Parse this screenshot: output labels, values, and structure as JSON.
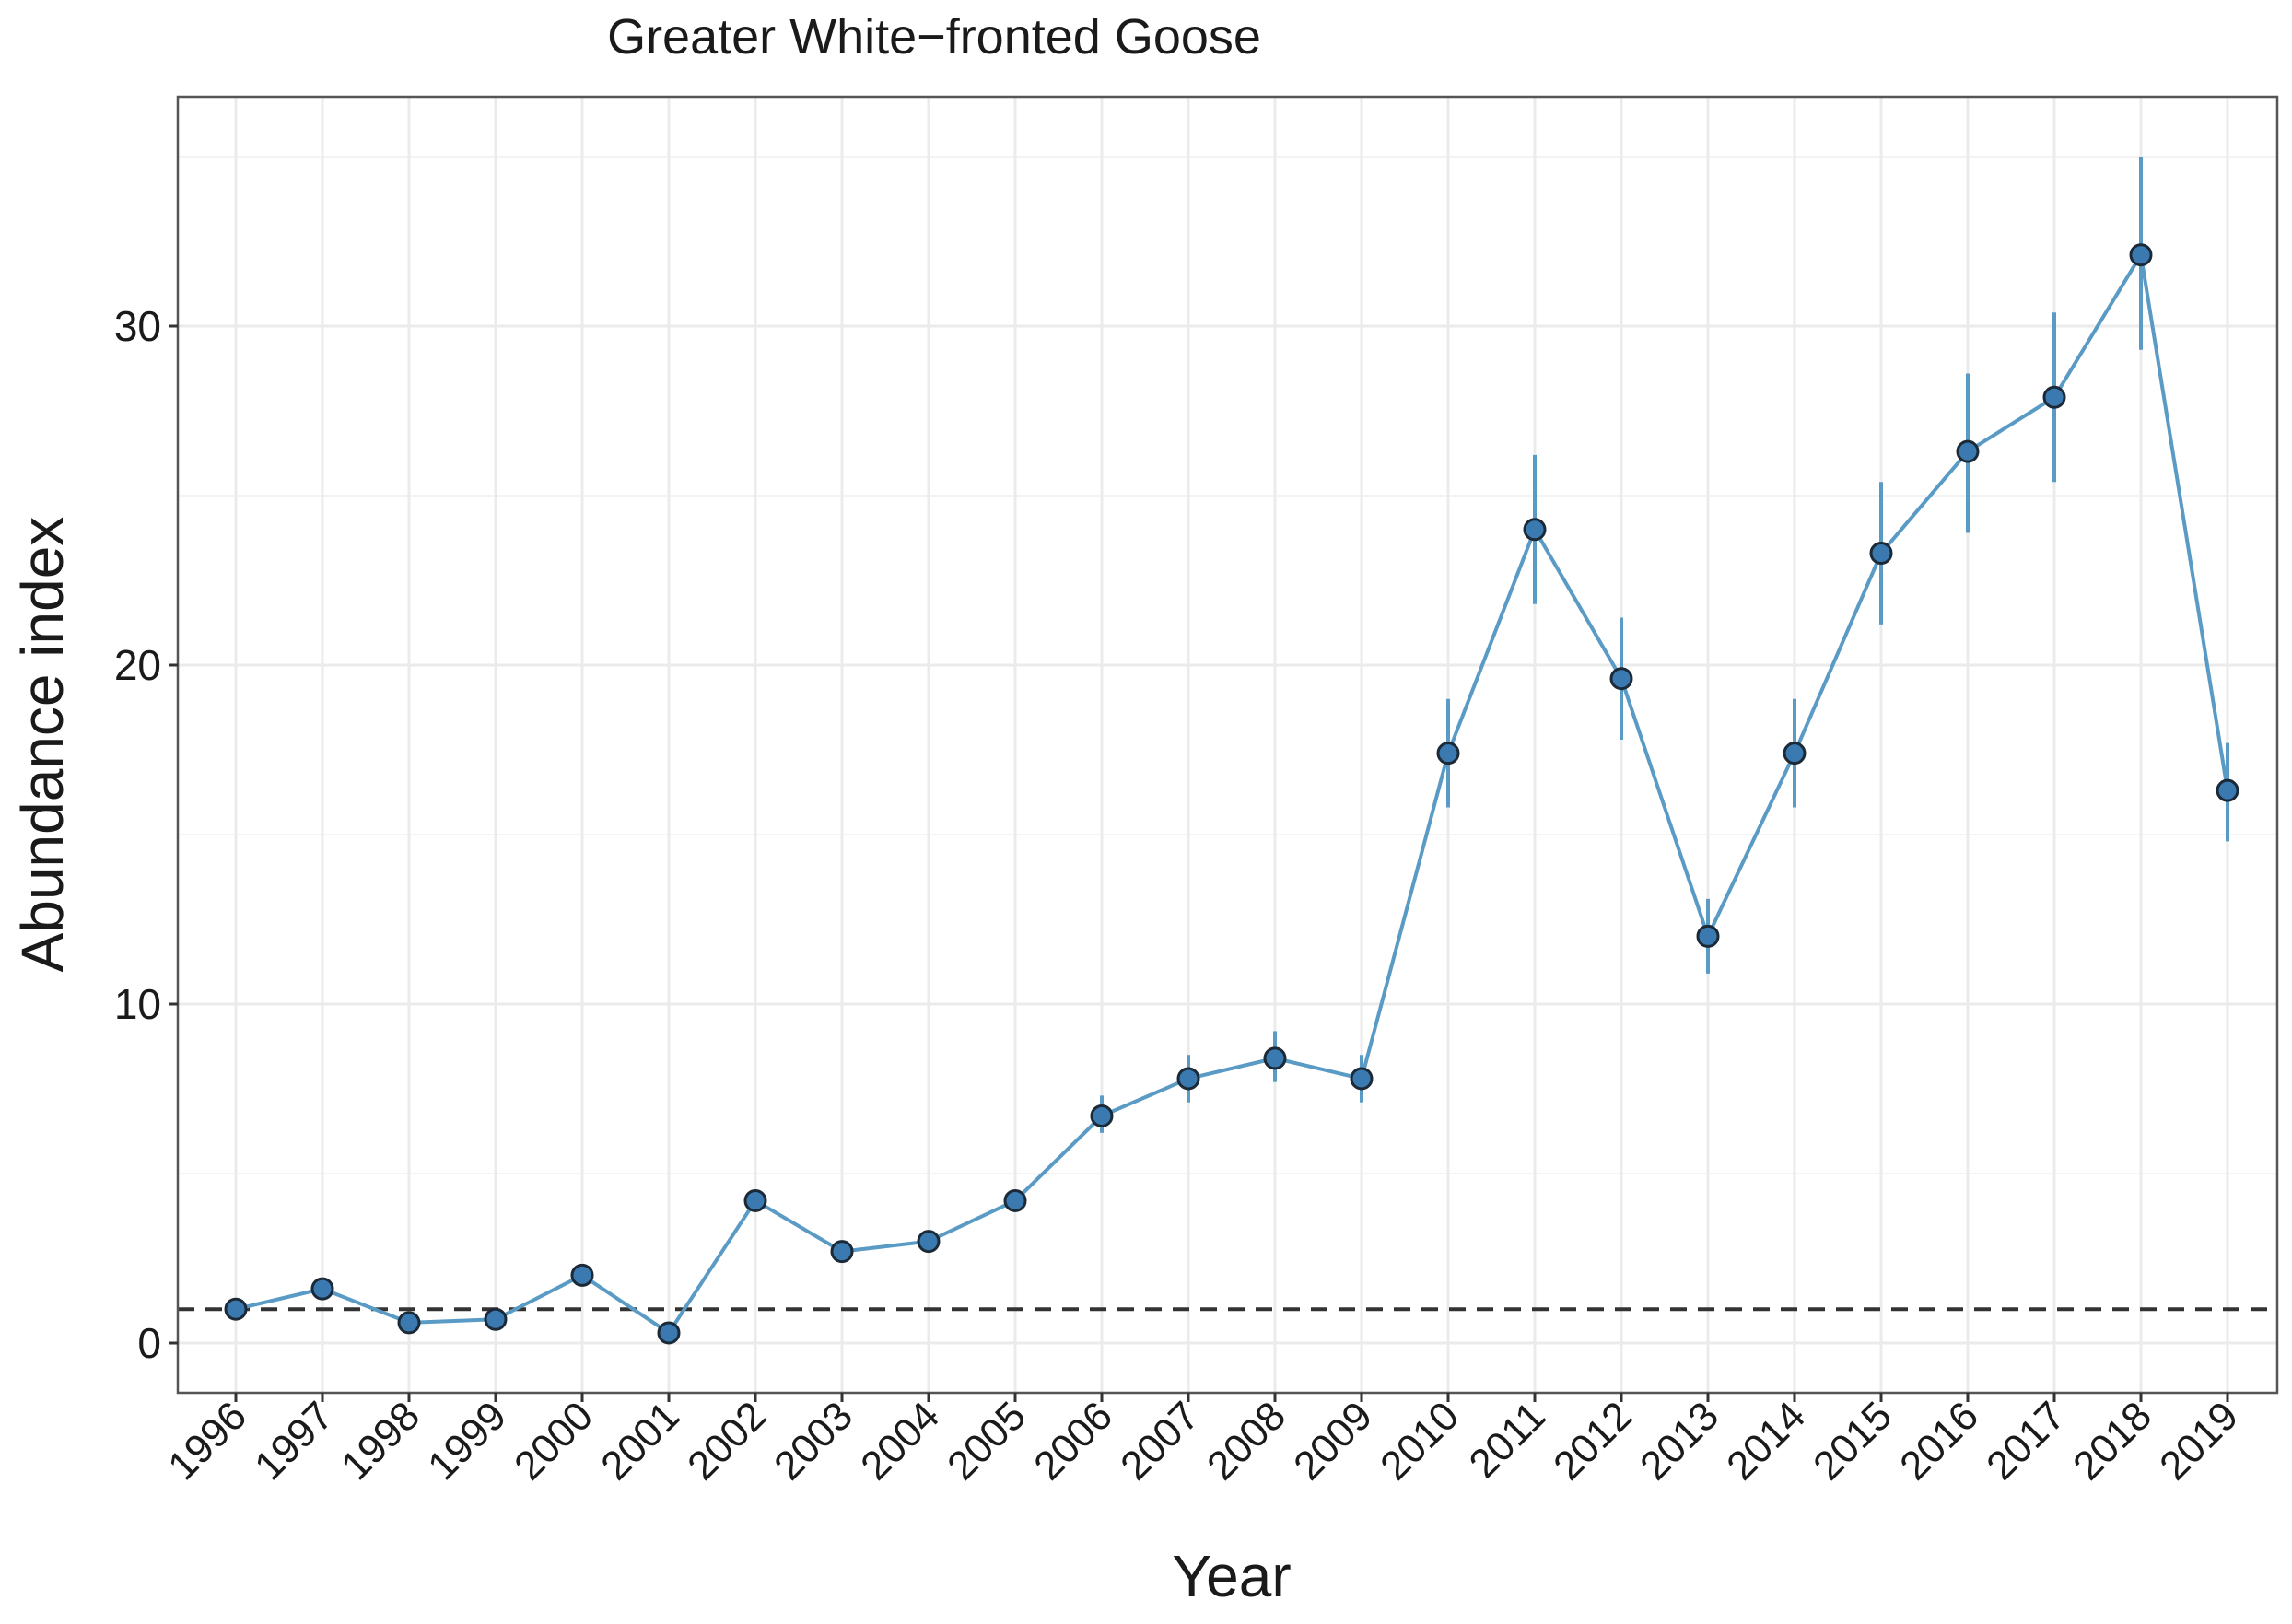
{
  "chart_data": {
    "type": "line",
    "title": "Greater White−fronted Goose",
    "xlabel": "Year",
    "ylabel": "Abundance index",
    "categories": [
      "1996",
      "1997",
      "1998",
      "1999",
      "2000",
      "2001",
      "2002",
      "2003",
      "2004",
      "2005",
      "2006",
      "2007",
      "2008",
      "2009",
      "2010",
      "2011",
      "2012",
      "2013",
      "2014",
      "2015",
      "2016",
      "2017",
      "2018",
      "2019"
    ],
    "series": [
      {
        "values": [
          1.0,
          1.6,
          0.6,
          0.7,
          2.0,
          0.3,
          4.2,
          2.7,
          3.0,
          4.2,
          6.7,
          7.8,
          8.4,
          7.8,
          17.4,
          24.0,
          19.6,
          12.0,
          17.4,
          23.3,
          26.3,
          27.9,
          32.1,
          16.3
        ],
        "lower": [
          0.8,
          1.4,
          0.5,
          0.6,
          1.8,
          0.2,
          3.9,
          2.5,
          2.8,
          3.9,
          6.2,
          7.1,
          7.7,
          7.1,
          15.8,
          21.8,
          17.8,
          10.9,
          15.8,
          21.2,
          23.9,
          25.4,
          29.3,
          14.8
        ],
        "upper": [
          1.2,
          1.8,
          0.8,
          0.9,
          2.2,
          0.5,
          4.5,
          2.9,
          3.2,
          4.5,
          7.3,
          8.5,
          9.2,
          8.5,
          19.0,
          26.2,
          21.4,
          13.1,
          19.0,
          25.4,
          28.6,
          30.4,
          35.0,
          17.7
        ]
      }
    ],
    "reference_line": 1,
    "yticks": [
      0,
      10,
      20,
      30
    ],
    "ylim": [
      -1.5,
      37.5
    ],
    "grid": true,
    "colors": {
      "line": "#5a9bc6",
      "point_fill": "#3a7ab1",
      "point_stroke": "#1c2a38",
      "reference": "#333333",
      "grid": "#ebebeb",
      "frame": "#555555"
    }
  }
}
